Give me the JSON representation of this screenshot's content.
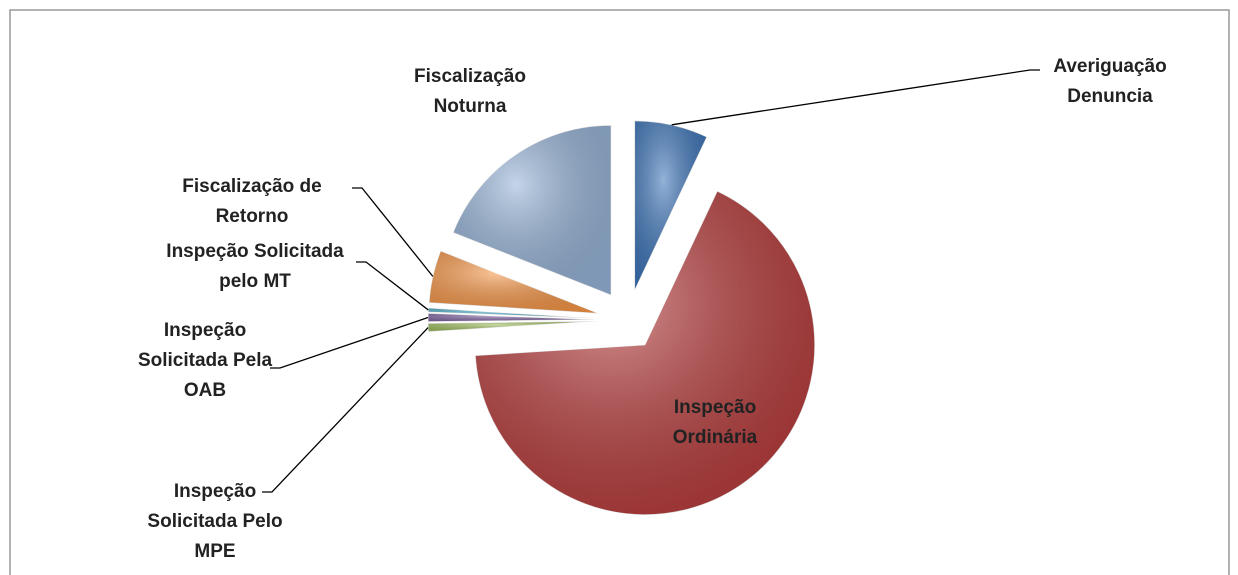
{
  "chart_data": {
    "type": "pie",
    "categories": [
      "Averiguação Denuncia",
      "Inspeção Ordinária",
      "Inspeção Solicitada Pelo MPE",
      "Inspeção Solicitada Pela OAB",
      "Inspeção Solicitada pelo MT",
      "Fiscalização de Retorno",
      "Fiscalização Noturna"
    ],
    "values": [
      7,
      67,
      0.8,
      0.8,
      0.4,
      5,
      19
    ],
    "colors": [
      "#3a73b8",
      "#b83b3b",
      "#9bbb59",
      "#8064a2",
      "#4bacc6",
      "#f79646",
      "#95b3d7"
    ]
  }
}
